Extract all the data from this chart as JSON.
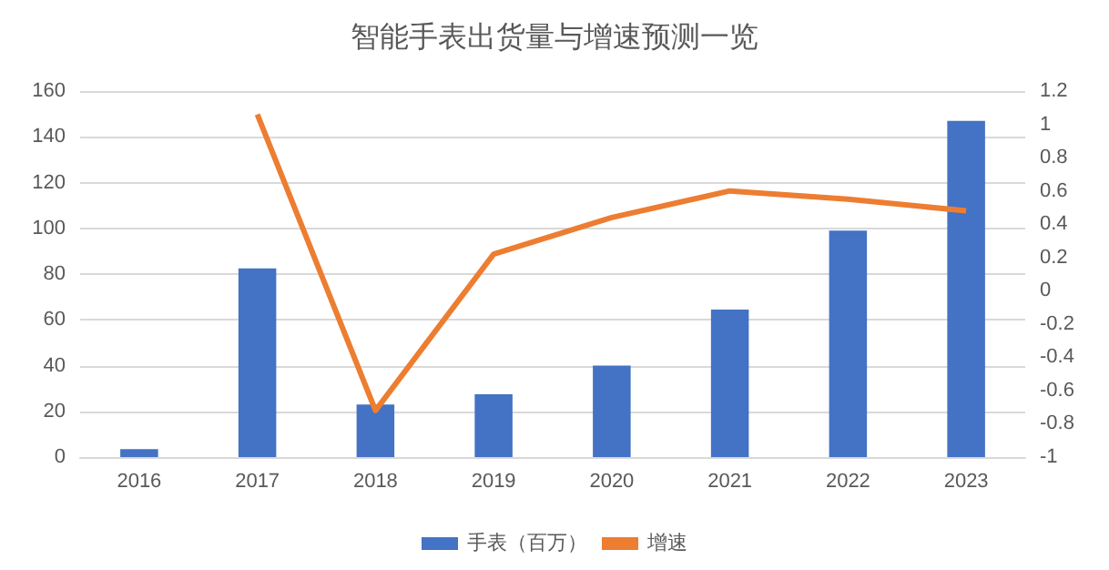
{
  "chart_data": {
    "type": "bar",
    "title": "智能手表出货量与增速预测一览",
    "categories": [
      "2016",
      "2017",
      "2018",
      "2019",
      "2020",
      "2021",
      "2022",
      "2023"
    ],
    "series": [
      {
        "name": "手表（百万）",
        "color": "#4472c4",
        "values": [
          3.5,
          82.5,
          23,
          27.5,
          40,
          64.5,
          99,
          147
        ]
      },
      {
        "name": "增速",
        "type": "line",
        "axis": "y2",
        "color": "#ed7d31",
        "values": [
          null,
          1.06,
          -0.72,
          0.22,
          0.44,
          0.6,
          0.55,
          0.48
        ]
      }
    ],
    "ylim": [
      0,
      160
    ],
    "yticks": [
      0,
      20,
      40,
      60,
      80,
      100,
      120,
      140,
      160
    ],
    "y2lim": [
      -1,
      1.2
    ],
    "y2ticks": [
      -1,
      -0.8,
      -0.6,
      -0.4,
      -0.2,
      0,
      0.2,
      0.4,
      0.6,
      0.8,
      1,
      1.2
    ],
    "grid": "y",
    "legend": "bottom"
  }
}
